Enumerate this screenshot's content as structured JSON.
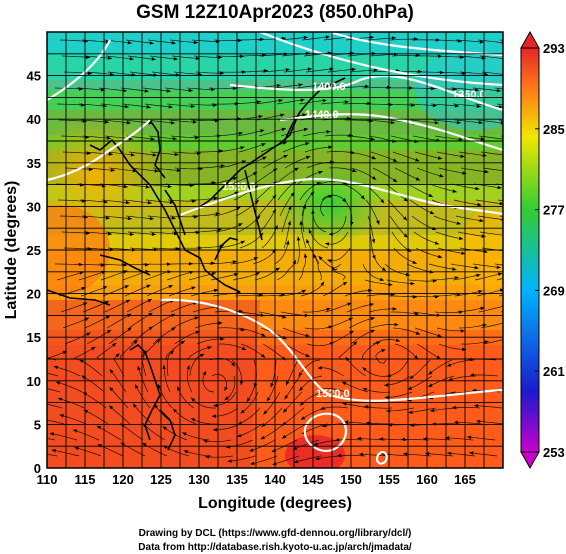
{
  "title": "GSM 12Z10Apr2023 (850.0hPa)",
  "xlabel": "Longitude (degrees)",
  "ylabel": "Latitude  (degrees)",
  "footer": {
    "line1": "Drawing by DCL (https://www.gfd-dennou.org/library/dcl/)",
    "line2": "Data from http://database.rish.kyoto-u.ac.jp/arch/jmadata/"
  },
  "chart_data": {
    "type": "heatmap",
    "x_range": [
      110,
      170
    ],
    "y_range": [
      0,
      50
    ],
    "x_ticks": [
      "110",
      "115",
      "120",
      "125",
      "130",
      "135",
      "140",
      "145",
      "150",
      "155",
      "160",
      "165"
    ],
    "y_ticks": [
      "0",
      "5",
      "10",
      "15",
      "20",
      "25",
      "30",
      "35",
      "40",
      "45"
    ],
    "grid": true,
    "colorbar": {
      "range": [
        253,
        293
      ],
      "ticks": [
        "253",
        "261",
        "269",
        "277",
        "285",
        "293"
      ],
      "colors": [
        "#cc00cc",
        "#1a1acc",
        "#00b4ff",
        "#33cc33",
        "#f2e600",
        "#ff7a1a",
        "#e62626"
      ]
    },
    "contour_labels": [
      "1400.0",
      "1440.0",
      "1360.0",
      "1520.0",
      "1520.0"
    ],
    "streamlines": true,
    "coastlines": true
  }
}
